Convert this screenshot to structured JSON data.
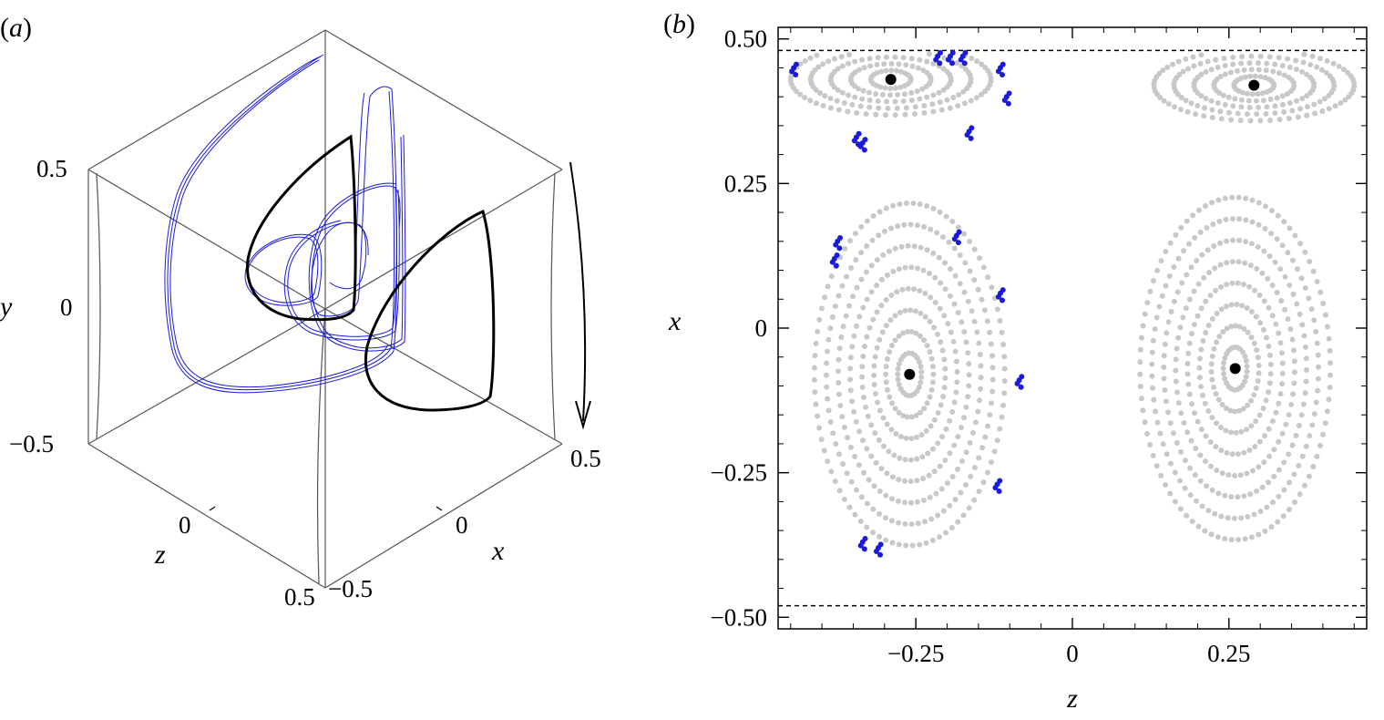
{
  "panel_a": {
    "label_open": "(",
    "label_letter": "a",
    "label_close": ")",
    "y_axis": {
      "label": "y",
      "ticks": [
        "0.5",
        "0",
        "−0.5"
      ]
    },
    "z_axis": {
      "label": "z",
      "ticks": [
        "0",
        "0.5"
      ]
    },
    "x_axis": {
      "label": "x",
      "ticks": [
        "−0.5",
        "0",
        "0.5"
      ]
    },
    "arrow": "rotation-direction-arrow",
    "colors": {
      "blue_trajectory": "#1a1adb",
      "black_orbit": "#000000",
      "box": "#555555"
    }
  },
  "panel_b": {
    "label_open": "(",
    "label_letter": "b",
    "label_close": ")",
    "x_axis": {
      "label": "z",
      "ticks": [
        "−0.25",
        "0",
        "0.25"
      ]
    },
    "y_axis": {
      "label": "x",
      "ticks": [
        "0.50",
        "0.25",
        "0",
        "−0.25",
        "−0.50"
      ]
    },
    "colors": {
      "poincare_gray": "#c8c8c8",
      "blue_section": "#1a1adb",
      "fixed_point": "#000000",
      "dashed_wall": "#000000"
    }
  },
  "chart_data": [
    {
      "type": "line",
      "panel": "a",
      "title": "",
      "xlabel": "x",
      "ylabel": "y",
      "zlabel": "z",
      "xlim": [
        -0.5,
        0.5
      ],
      "ylim": [
        -0.5,
        0.5
      ],
      "zlim": [
        -0.5,
        0.5
      ],
      "grid": false,
      "legend": "none",
      "series": [
        {
          "color": "#1a1adb",
          "kind": "quasi-periodic trajectory"
        },
        {
          "color": "#000000",
          "kind": "closed periodic orbit"
        }
      ]
    },
    {
      "type": "scatter",
      "panel": "b",
      "title": "",
      "xlabel": "z",
      "ylabel": "x",
      "xlim": [
        -0.47,
        0.47
      ],
      "ylim": [
        -0.52,
        0.52
      ],
      "x_ticks": [
        -0.25,
        0,
        0.25
      ],
      "y_ticks": [
        0.5,
        0.25,
        0,
        -0.25,
        -0.5
      ],
      "grid": false,
      "legend": "none",
      "reference_lines": [
        {
          "orientation": "horizontal",
          "y": 0.48,
          "style": "dashed"
        },
        {
          "orientation": "horizontal",
          "y": -0.48,
          "style": "dashed"
        }
      ],
      "series": [
        {
          "color": "#c8c8c8",
          "kind": "Poincare section (nested invariant curves)",
          "island_centers": [
            {
              "z": -0.26,
              "x": -0.08
            },
            {
              "z": 0.26,
              "x": -0.07
            },
            {
              "z": -0.29,
              "x": 0.43
            },
            {
              "z": 0.29,
              "x": 0.42
            }
          ]
        },
        {
          "color": "#1a1adb",
          "kind": "blue trajectory crossings",
          "points": [
            {
              "z": -0.445,
              "x": 0.45
            },
            {
              "z": -0.215,
              "x": 0.47
            },
            {
              "z": -0.195,
              "x": 0.47
            },
            {
              "z": -0.175,
              "x": 0.47
            },
            {
              "z": -0.115,
              "x": 0.45
            },
            {
              "z": -0.105,
              "x": 0.4
            },
            {
              "z": -0.165,
              "x": 0.34
            },
            {
              "z": -0.345,
              "x": 0.33
            },
            {
              "z": -0.335,
              "x": 0.32
            },
            {
              "z": -0.375,
              "x": 0.15
            },
            {
              "z": -0.38,
              "x": 0.12
            },
            {
              "z": -0.185,
              "x": 0.16
            },
            {
              "z": -0.115,
              "x": 0.06
            },
            {
              "z": -0.085,
              "x": -0.09
            },
            {
              "z": -0.12,
              "x": -0.27
            },
            {
              "z": -0.335,
              "x": -0.37
            },
            {
              "z": -0.31,
              "x": -0.38
            }
          ]
        },
        {
          "color": "#000000",
          "kind": "fixed points (periodic orbit crossings)",
          "points": [
            {
              "z": -0.26,
              "x": -0.08
            },
            {
              "z": 0.26,
              "x": -0.07
            },
            {
              "z": -0.29,
              "x": 0.43
            },
            {
              "z": 0.29,
              "x": 0.42
            }
          ]
        }
      ]
    }
  ]
}
